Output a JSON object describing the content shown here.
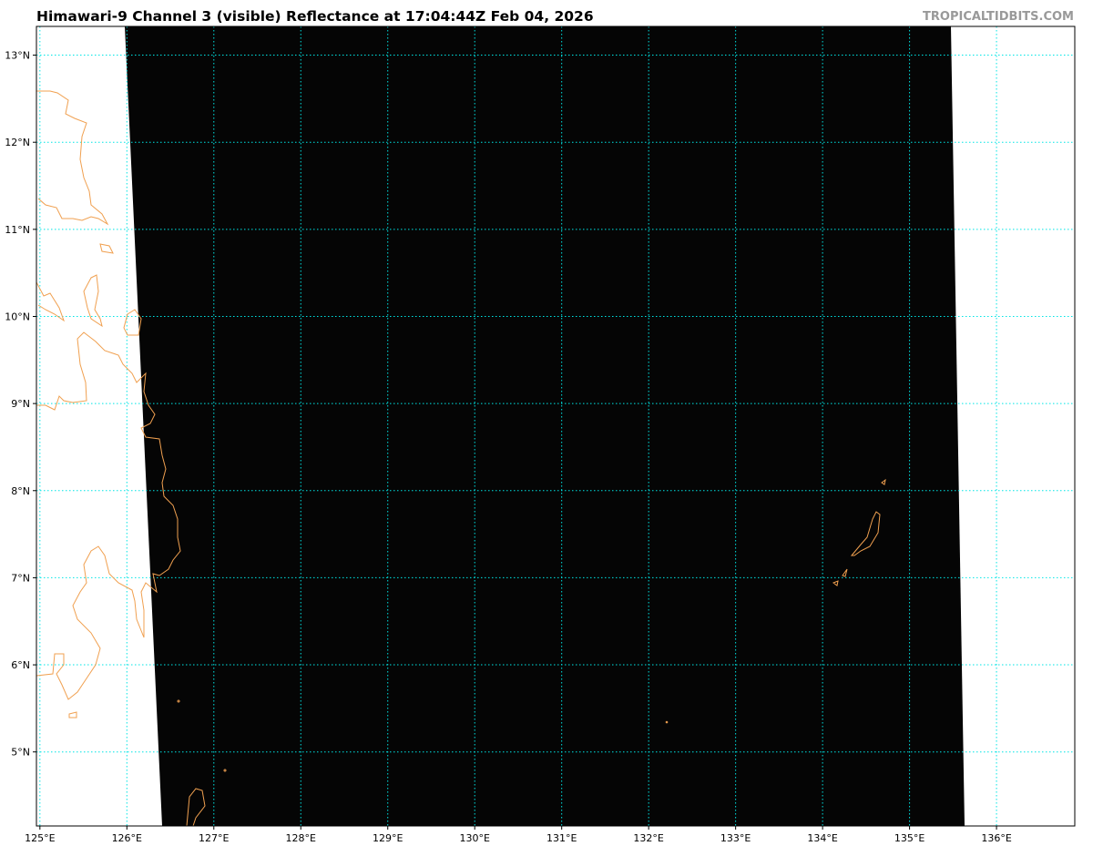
{
  "title": "Himawari-9 Channel 3 (visible) Reflectance at 17:04:44Z Feb 04, 2026",
  "watermark": "TROPICALTIDBITS.COM",
  "map": {
    "projection": "plate carree",
    "lon_range": [
      124.96,
      136.9
    ],
    "lat_range": [
      4.15,
      13.33
    ],
    "grid": "dotted",
    "grid_color": "#00e5e5",
    "coastline_color": "#f0a050",
    "imagery_color": "#000000",
    "no_data_color": "#ffffff",
    "lon_ticks": [
      {
        "value": 125,
        "label": "125°E"
      },
      {
        "value": 126,
        "label": "126°E"
      },
      {
        "value": 127,
        "label": "127°E"
      },
      {
        "value": 128,
        "label": "128°E"
      },
      {
        "value": 129,
        "label": "129°E"
      },
      {
        "value": 130,
        "label": "130°E"
      },
      {
        "value": 131,
        "label": "131°E"
      },
      {
        "value": 132,
        "label": "132°E"
      },
      {
        "value": 133,
        "label": "133°E"
      },
      {
        "value": 134,
        "label": "134°E"
      },
      {
        "value": 135,
        "label": "135°E"
      },
      {
        "value": 136,
        "label": "136°E"
      }
    ],
    "lat_ticks": [
      {
        "value": 13,
        "label": "13°N"
      },
      {
        "value": 12,
        "label": "12°N"
      },
      {
        "value": 11,
        "label": "11°N"
      },
      {
        "value": 10,
        "label": "10°N"
      },
      {
        "value": 9,
        "label": "9°N"
      },
      {
        "value": 8,
        "label": "8°N"
      },
      {
        "value": 7,
        "label": "7°N"
      },
      {
        "value": 6,
        "label": "6°N"
      },
      {
        "value": 5,
        "label": "5°N"
      }
    ]
  }
}
